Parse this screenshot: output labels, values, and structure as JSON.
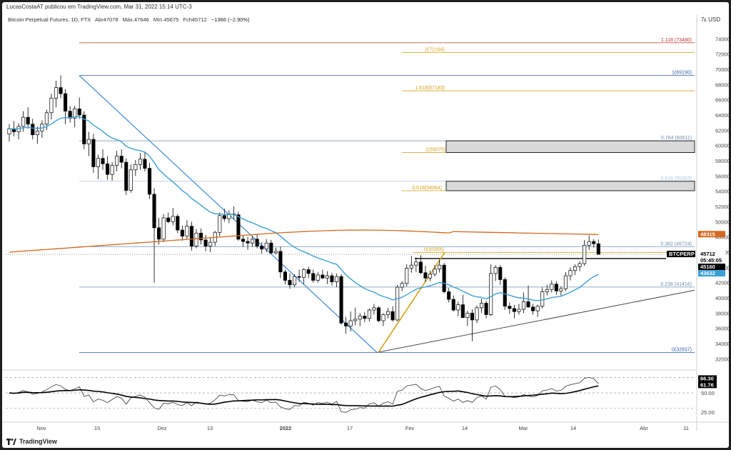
{
  "publisher": "LucasCostaAT publicou em TradingView.com, Mar 31, 2022 15:14 UTC-3",
  "header": {
    "symbol": "Bitcoin Perpetual Futures, 1D, FTX",
    "open": "Abr47078",
    "high": "Máx.47646",
    "low": "Mín.45675",
    "close": "Fch45712",
    "change": "−1366 (−2.90%)"
  },
  "currency_button": "7ε USD",
  "footer_brand": "TradingView",
  "colors": {
    "up": "#ffffff",
    "down": "#000000",
    "ema": "#3aa0d8",
    "sma200": "#d2691e",
    "trendline": "#4a90d9",
    "fib_blue": "#2e5fa8",
    "fib_orange": "#d4a017",
    "fib_red": "#b23a2e",
    "fib_gray": "#6f8fb0"
  },
  "chart_data": [
    {
      "type": "candlestick",
      "title": "Bitcoin Perpetual Futures, 1D, FTX",
      "ylim": [
        31000,
        76000
      ],
      "y_ticks": [
        "74000",
        "72000",
        "70000",
        "68000",
        "66000",
        "64000",
        "62000",
        "60000",
        "58000",
        "56000",
        "54000",
        "52000",
        "50000",
        "48000",
        "46000",
        "44000",
        "42000",
        "40000",
        "38000",
        "36000",
        "34000",
        "32000"
      ],
      "x_ticks": [
        "Nov",
        "15",
        "Dez",
        "13",
        "2022",
        "17",
        "Fev",
        "14",
        "Mar",
        "14",
        "Abr",
        "11"
      ],
      "candles": [
        [
          61500,
          62800,
          60500,
          62200
        ],
        [
          62200,
          63200,
          61200,
          61800
        ],
        [
          61800,
          62900,
          60800,
          62500
        ],
        [
          62500,
          64500,
          61800,
          63700
        ],
        [
          63700,
          65000,
          62200,
          62800
        ],
        [
          62800,
          63500,
          60800,
          61400
        ],
        [
          61400,
          62500,
          60200,
          61900
        ],
        [
          61900,
          63300,
          61000,
          62800
        ],
        [
          62800,
          64700,
          62000,
          64300
        ],
        [
          64300,
          66800,
          63400,
          66200
        ],
        [
          66200,
          68500,
          65000,
          67600
        ],
        [
          67600,
          69200,
          66200,
          66800
        ],
        [
          66800,
          67400,
          62800,
          64500
        ],
        [
          64500,
          65200,
          63000,
          63600
        ],
        [
          63600,
          65200,
          62400,
          64800
        ],
        [
          64800,
          66300,
          63500,
          64000
        ],
        [
          64000,
          64500,
          59500,
          60200
        ],
        [
          60200,
          61800,
          58600,
          60800
        ],
        [
          60800,
          61500,
          56400,
          57200
        ],
        [
          57200,
          58800,
          55600,
          58300
        ],
        [
          58300,
          59500,
          56800,
          57600
        ],
        [
          57600,
          58600,
          55500,
          56200
        ],
        [
          56200,
          57800,
          55400,
          57400
        ],
        [
          57400,
          59300,
          56600,
          58600
        ],
        [
          58600,
          59500,
          57000,
          57800
        ],
        [
          57800,
          58300,
          53500,
          54100
        ],
        [
          54100,
          57500,
          53800,
          56800
        ],
        [
          56800,
          58100,
          56000,
          57500
        ],
        [
          57500,
          59000,
          56800,
          58200
        ],
        [
          58200,
          59200,
          56600,
          57000
        ],
        [
          57000,
          57700,
          53000,
          53600
        ],
        [
          53600,
          54400,
          42000,
          49200
        ],
        [
          49200,
          50500,
          47000,
          47700
        ],
        [
          47700,
          51000,
          47300,
          50500
        ],
        [
          50500,
          51200,
          49800,
          50000
        ],
        [
          50000,
          51800,
          49500,
          50700
        ],
        [
          50700,
          51000,
          48500,
          48900
        ],
        [
          48900,
          49500,
          47500,
          48100
        ],
        [
          48100,
          50200,
          47700,
          49400
        ],
        [
          49400,
          50000,
          46200,
          46800
        ],
        [
          46800,
          49000,
          46500,
          48500
        ],
        [
          48500,
          49100,
          47000,
          47600
        ],
        [
          47600,
          48300,
          46100,
          46800
        ],
        [
          46800,
          47900,
          46000,
          47300
        ],
        [
          47300,
          48800,
          46800,
          48600
        ],
        [
          48600,
          51200,
          48100,
          50800
        ],
        [
          50800,
          51700,
          50000,
          50400
        ],
        [
          50400,
          51500,
          49800,
          51000
        ],
        [
          51000,
          52000,
          50300,
          50900
        ],
        [
          50900,
          51300,
          47500,
          47700
        ],
        [
          47700,
          48200,
          46700,
          47400
        ],
        [
          47400,
          48000,
          46300,
          47200
        ],
        [
          47200,
          48100,
          46700,
          47700
        ],
        [
          47700,
          48400,
          46500,
          46800
        ],
        [
          46800,
          47300,
          45800,
          46400
        ],
        [
          46400,
          47700,
          46000,
          47200
        ],
        [
          47200,
          47600,
          45700,
          45900
        ],
        [
          45900,
          46600,
          45700,
          46100
        ],
        [
          46100,
          46700,
          42600,
          43400
        ],
        [
          43400,
          43700,
          41800,
          42300
        ],
        [
          42300,
          43200,
          41200,
          41700
        ],
        [
          41700,
          43100,
          41400,
          42800
        ],
        [
          42800,
          43700,
          42100,
          42700
        ],
        [
          42700,
          43900,
          41800,
          43700
        ],
        [
          43700,
          44100,
          42600,
          43200
        ],
        [
          43200,
          43700,
          42000,
          42300
        ],
        [
          42300,
          43400,
          42000,
          43000
        ],
        [
          43000,
          43700,
          42500,
          42600
        ],
        [
          42600,
          43500,
          41800,
          42900
        ],
        [
          42900,
          43300,
          41600,
          42100
        ],
        [
          42100,
          43200,
          41400,
          42800
        ],
        [
          42800,
          43100,
          36500,
          36700
        ],
        [
          36700,
          37500,
          35300,
          36300
        ],
        [
          36300,
          38200,
          35600,
          37000
        ],
        [
          37000,
          38700,
          36400,
          37200
        ],
        [
          37200,
          38000,
          36300,
          37600
        ],
        [
          37600,
          38100,
          36800,
          37300
        ],
        [
          37300,
          38600,
          36900,
          38400
        ],
        [
          38400,
          39200,
          37800,
          38700
        ],
        [
          38700,
          38900,
          36800,
          37000
        ],
        [
          37000,
          38000,
          36300,
          37800
        ],
        [
          37800,
          38700,
          37300,
          38200
        ],
        [
          38200,
          38900,
          36900,
          37100
        ],
        [
          37100,
          41700,
          36900,
          41400
        ],
        [
          41400,
          42200,
          40900,
          41900
        ],
        [
          41900,
          44400,
          41500,
          43900
        ],
        [
          43900,
          45500,
          43300,
          44300
        ],
        [
          44300,
          45300,
          43400,
          44700
        ],
        [
          44700,
          45600,
          43100,
          43300
        ],
        [
          43300,
          44200,
          42100,
          42600
        ],
        [
          42600,
          43600,
          42200,
          43100
        ],
        [
          43100,
          44300,
          42800,
          43800
        ],
        [
          43800,
          45000,
          43300,
          44300
        ],
        [
          44300,
          44600,
          40600,
          40800
        ],
        [
          40800,
          41300,
          39400,
          39800
        ],
        [
          39800,
          40300,
          38200,
          38400
        ],
        [
          38400,
          39500,
          37600,
          39100
        ],
        [
          39100,
          40400,
          37800,
          37400
        ],
        [
          37400,
          38300,
          36300,
          38000
        ],
        [
          38000,
          38500,
          34300,
          37100
        ],
        [
          37100,
          39000,
          36700,
          38700
        ],
        [
          38700,
          39900,
          38000,
          39300
        ],
        [
          39300,
          39600,
          37300,
          37800
        ],
        [
          37800,
          44400,
          37600,
          43200
        ],
        [
          43200,
          44300,
          42200,
          44000
        ],
        [
          44000,
          44300,
          41700,
          42400
        ],
        [
          42400,
          42700,
          38400,
          38900
        ],
        [
          38900,
          39400,
          37900,
          38600
        ],
        [
          38600,
          39100,
          37300,
          38200
        ],
        [
          38200,
          39200,
          37800,
          38500
        ],
        [
          38500,
          40700,
          38000,
          39500
        ],
        [
          39500,
          41600,
          38700,
          38800
        ],
        [
          38800,
          39200,
          37800,
          38300
        ],
        [
          38300,
          39100,
          37500,
          38900
        ],
        [
          38900,
          41400,
          38600,
          40800
        ],
        [
          40800,
          41700,
          40300,
          41100
        ],
        [
          41100,
          42300,
          40700,
          41800
        ],
        [
          41800,
          42200,
          40400,
          40900
        ],
        [
          40900,
          41500,
          40300,
          41200
        ],
        [
          41200,
          43400,
          40900,
          42900
        ],
        [
          42900,
          44000,
          42300,
          43600
        ],
        [
          43600,
          44400,
          43000,
          44100
        ],
        [
          44100,
          44800,
          43500,
          44500
        ],
        [
          44500,
          47600,
          44200,
          46900
        ],
        [
          46900,
          48200,
          46300,
          47400
        ],
        [
          47400,
          47700,
          46600,
          47100
        ],
        [
          47100,
          47650,
          45675,
          45712
        ]
      ],
      "series": [
        {
          "name": "EMA",
          "last": 43632
        },
        {
          "name": "MA",
          "last": 48315
        }
      ],
      "fib_levels": [
        {
          "label": "1.118 (73480)",
          "value": 73480,
          "color": "#b23a2e"
        },
        {
          "label": "2(72194)",
          "value": 72194,
          "color": "#d4a017"
        },
        {
          "label": "1(69190)",
          "value": 69190,
          "color": "#2e5fa8"
        },
        {
          "label": "1.618(67183)",
          "value": 67183,
          "color": "#d4a017"
        },
        {
          "label": "0.764 (60611)",
          "value": 60611,
          "color": "#6f8fb0"
        },
        {
          "label": "1(59075)",
          "value": 59075,
          "color": "#d4a017"
        },
        {
          "label": "0.618 (55303)",
          "value": 55303,
          "color": "#a9c4e3"
        },
        {
          "label": "0.618(54064)",
          "value": 54064,
          "color": "#d4a017"
        },
        {
          "label": "0.382 (46724)",
          "value": 46724,
          "color": "#6f8fb0"
        },
        {
          "label": "0(45956)",
          "value": 45956,
          "color": "#d4a017"
        },
        {
          "label": "0.236 (41416)",
          "value": 41416,
          "color": "#6f8fb0"
        },
        {
          "label": "0(32837)",
          "value": 32837,
          "color": "#2e5fa8"
        }
      ],
      "zones": [
        {
          "from": 59075,
          "to": 60611
        },
        {
          "from": 54064,
          "to": 55303
        }
      ],
      "price_labels": [
        {
          "text": "48315",
          "value": 48315,
          "bg": "#d2691e",
          "fg": "#ffffff"
        },
        {
          "text": "BTCPERP",
          "value": 45712,
          "bg": "#000000",
          "fg": "#ffffff"
        },
        {
          "text": "45712",
          "value": 45712,
          "bg": "#ffffff",
          "fg": "#000000"
        },
        {
          "text": "05:45:05",
          "value": 45000,
          "bg": "#ffffff",
          "fg": "#000000"
        },
        {
          "text": "45160",
          "value": 45160,
          "bg": "#000000",
          "fg": "#ffffff"
        },
        {
          "text": "43632",
          "value": 43632,
          "bg": "#3aa0d8",
          "fg": "#ffffff"
        }
      ]
    },
    {
      "type": "line",
      "title": "",
      "ylim": [
        15,
        75
      ],
      "y_ticks": [
        "66.30",
        "61.76",
        "50.00",
        "25.00"
      ],
      "guide_levels": [
        70,
        50,
        30
      ],
      "series": [
        {
          "name": "RSI",
          "last": 66.3
        },
        {
          "name": "RSI MA",
          "last": 61.76
        }
      ]
    }
  ]
}
